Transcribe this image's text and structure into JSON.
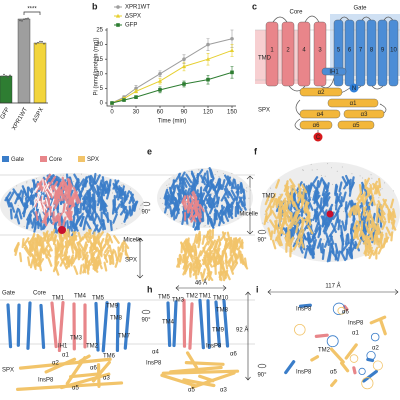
{
  "chart_data": [
    {
      "type": "bar",
      "categories": [
        "GFP",
        "XPR1WT",
        "ΔSPX"
      ],
      "values": [
        9,
        28,
        20
      ],
      "colors": [
        "#2e7d32",
        "#9e9e9e",
        "#f2d53c"
      ],
      "ylim": [
        0,
        30
      ],
      "annotations": [
        "****"
      ]
    },
    {
      "type": "line",
      "label": "b",
      "x": [
        0,
        15,
        30,
        60,
        90,
        120,
        150
      ],
      "series": [
        {
          "name": "XPR1WT",
          "color": "#9e9e9e",
          "marker": "circle",
          "values": [
            0,
            2,
            5,
            10,
            15,
            20,
            22
          ],
          "errors": [
            0,
            0.5,
            1,
            1,
            1.5,
            2,
            3
          ]
        },
        {
          "name": "ΔSPX",
          "color": "#e6cf2e",
          "marker": "triangle",
          "values": [
            0,
            1.5,
            4,
            7.5,
            12.5,
            15,
            18
          ],
          "errors": [
            0,
            0.5,
            0.5,
            1,
            1.5,
            2,
            2
          ]
        },
        {
          "name": "GFP",
          "color": "#2e7d32",
          "marker": "square",
          "values": [
            0,
            1,
            2,
            4.5,
            6.5,
            8,
            10.5
          ],
          "errors": [
            0,
            0.3,
            0.5,
            1,
            1,
            1.5,
            2
          ]
        }
      ],
      "xlim": [
        0,
        150
      ],
      "ylim": [
        0,
        25
      ],
      "xticks": [
        0,
        30,
        60,
        90,
        120,
        150
      ],
      "yticks": [
        0,
        5,
        10,
        15,
        20,
        25
      ],
      "x_label": "Time (min)",
      "y_label": "Pi (nmol/protein (mg))",
      "legend": "upper left"
    }
  ],
  "panels": {
    "c": {
      "letter": "c",
      "texts": [
        "Core",
        "Gate",
        "TMD",
        "SPX",
        "IH1",
        "N",
        "C"
      ],
      "helices": [
        "1",
        "2",
        "4",
        "3",
        "5",
        "6",
        "7",
        "8",
        "9",
        "10"
      ],
      "spx_helices": [
        "α2",
        "α1",
        "α4",
        "α3",
        "α6",
        "α5"
      ]
    },
    "d": {
      "legend": [
        "Gate",
        "Core",
        "SPX"
      ],
      "colors": [
        "#3a7dc9",
        "#e8868a",
        "#f2c46a"
      ]
    },
    "e": {
      "letter": "e",
      "texts": [
        "90°",
        "Micelle",
        "SPX"
      ]
    },
    "f": {
      "letter": "f",
      "texts": [
        "TMD",
        "Micelle",
        "90°"
      ]
    },
    "g": {
      "texts": [
        "Gate",
        "Core",
        "TM1",
        "TM4",
        "TM5",
        "TM9",
        "TM8",
        "TM7",
        "TM3",
        "IH1",
        "TM2",
        "TM6",
        "α1",
        "α2",
        "SPX",
        "α6",
        "α3",
        "InsP8",
        "α5"
      ]
    },
    "h": {
      "letter": "h",
      "texts": [
        "46 Å",
        "TM5",
        "TM3",
        "TM2",
        "TM1",
        "TM10",
        "TM8",
        "TM4",
        "TM9",
        "α4",
        "InsP8",
        "InsP8",
        "α6",
        "α5",
        "α3",
        "92 Å",
        "90°"
      ]
    },
    "i": {
      "letter": "i",
      "texts": [
        "117 Å",
        "InsP8",
        "α6",
        "InsP8",
        "α1",
        "TM2",
        "α5",
        "InsP8",
        "α2",
        "90°"
      ]
    }
  }
}
